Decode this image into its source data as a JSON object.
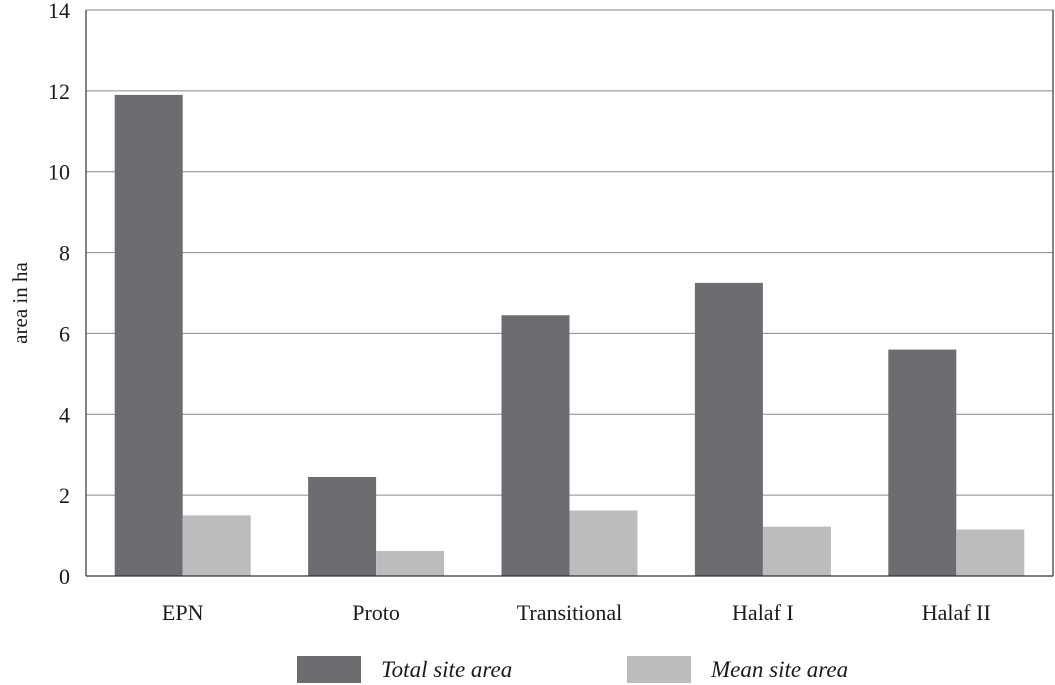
{
  "chart_data": {
    "type": "bar",
    "categories": [
      "EPN",
      "Proto",
      "Transitional",
      "Halaf I",
      "Halaf II"
    ],
    "series": [
      {
        "name": "Total site area",
        "values": [
          11.9,
          2.45,
          6.45,
          7.25,
          5.6
        ],
        "color": "#6d6d71"
      },
      {
        "name": "Mean site area",
        "values": [
          1.5,
          0.62,
          1.62,
          1.22,
          1.15
        ],
        "color": "#bcbcbf"
      }
    ],
    "title": "",
    "xlabel": "",
    "ylabel": "area in ha",
    "ylim": [
      0,
      14
    ],
    "yticks": [
      "0",
      "2",
      "4",
      "6",
      "8",
      "10",
      "12",
      "14"
    ],
    "grid": true,
    "legend_position": "bottom"
  }
}
